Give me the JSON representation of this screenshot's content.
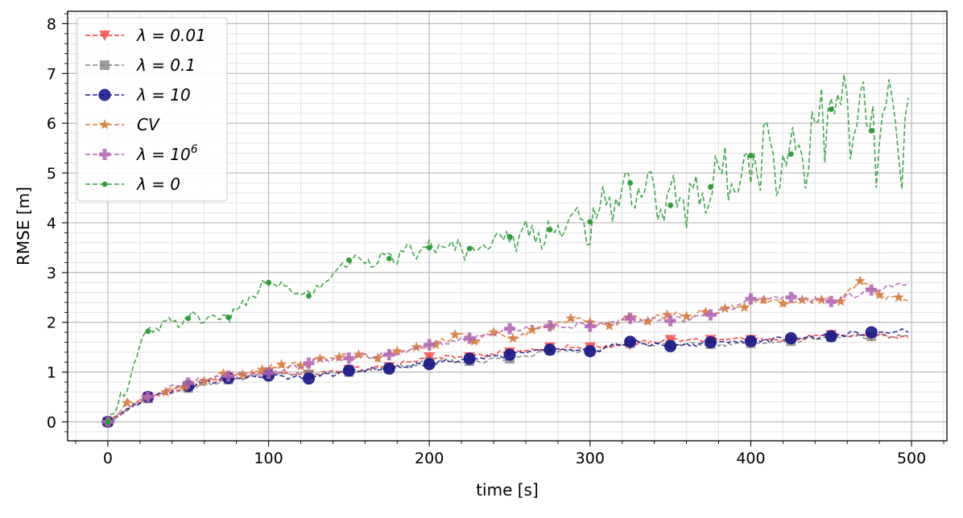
{
  "chart_data": {
    "type": "line",
    "xlabel": "time [s]",
    "ylabel": "RMSE [m]",
    "xlim": [
      -25,
      522
    ],
    "ylim": [
      -0.38,
      8.25
    ],
    "x_ticks": [
      0,
      100,
      200,
      300,
      400,
      500
    ],
    "y_ticks": [
      0,
      1,
      2,
      3,
      4,
      5,
      6,
      7,
      8
    ],
    "x_tick_labels": [
      "0",
      "100",
      "200",
      "300",
      "400",
      "500"
    ],
    "y_tick_labels": [
      "0",
      "1",
      "2",
      "3",
      "4",
      "5",
      "6",
      "7",
      "8"
    ],
    "grid": true,
    "legend_position": "top-left",
    "series": [
      {
        "name": "λ = 0.01",
        "legend_label": "λ = 0.01",
        "color": "#ff3333",
        "marker": "triangle-down",
        "x": [
          0,
          25,
          50,
          75,
          100,
          125,
          150,
          175,
          200,
          225,
          250,
          275,
          300,
          325,
          350,
          375,
          400,
          425,
          450,
          475
        ],
        "y": [
          0.0,
          0.5,
          0.72,
          0.9,
          1.0,
          0.95,
          1.05,
          1.1,
          1.3,
          1.3,
          1.4,
          1.5,
          1.5,
          1.55,
          1.65,
          1.65,
          1.65,
          1.65,
          1.75,
          1.72
        ]
      },
      {
        "name": "λ = 0.1",
        "legend_label": "λ = 0.1",
        "color": "#808080",
        "marker": "square",
        "x": [
          0,
          25,
          50,
          75,
          100,
          125,
          150,
          175,
          200,
          225,
          250,
          275,
          300,
          325,
          350,
          375,
          400,
          425,
          450,
          475
        ],
        "y": [
          0.0,
          0.47,
          0.68,
          0.85,
          0.97,
          0.95,
          1.0,
          1.08,
          1.2,
          1.22,
          1.27,
          1.44,
          1.42,
          1.58,
          1.55,
          1.56,
          1.58,
          1.62,
          1.7,
          1.72
        ]
      },
      {
        "name": "λ = 10",
        "legend_label": "λ = 10",
        "color": "#1a1a8c",
        "marker": "circle",
        "x": [
          0,
          25,
          50,
          75,
          100,
          125,
          150,
          175,
          200,
          225,
          250,
          275,
          300,
          325,
          350,
          375,
          400,
          425,
          450,
          475
        ],
        "y": [
          0.0,
          0.5,
          0.72,
          0.88,
          0.93,
          0.87,
          1.03,
          1.07,
          1.16,
          1.27,
          1.35,
          1.45,
          1.42,
          1.61,
          1.52,
          1.6,
          1.62,
          1.68,
          1.72,
          1.8
        ]
      },
      {
        "name": "CV",
        "legend_label": "CV",
        "color": "#d97a3a",
        "marker": "star",
        "x": [
          0,
          12,
          24,
          36,
          48,
          60,
          72,
          84,
          96,
          108,
          120,
          132,
          144,
          156,
          168,
          180,
          192,
          204,
          216,
          228,
          240,
          252,
          264,
          276,
          288,
          300,
          312,
          324,
          336,
          348,
          360,
          372,
          384,
          396,
          408,
          420,
          432,
          444,
          456,
          468,
          480,
          492
        ],
        "y": [
          0.0,
          0.38,
          0.5,
          0.6,
          0.7,
          0.82,
          0.97,
          0.95,
          1.05,
          1.15,
          1.12,
          1.27,
          1.3,
          1.35,
          1.28,
          1.42,
          1.5,
          1.55,
          1.75,
          1.62,
          1.8,
          1.68,
          1.85,
          1.92,
          2.08,
          2.0,
          1.93,
          2.1,
          2.02,
          2.15,
          2.12,
          2.2,
          2.28,
          2.3,
          2.45,
          2.38,
          2.45,
          2.45,
          2.42,
          2.83,
          2.55,
          2.5
        ]
      },
      {
        "name": "λ = 10^6",
        "legend_label": "λ = 10",
        "legend_superscript": "6",
        "color": "#b064b4",
        "marker": "plus",
        "x": [
          0,
          25,
          50,
          75,
          100,
          125,
          150,
          175,
          200,
          225,
          250,
          275,
          300,
          325,
          350,
          375,
          400,
          425,
          450,
          475
        ],
        "y": [
          0.0,
          0.5,
          0.78,
          0.92,
          0.98,
          1.18,
          1.28,
          1.35,
          1.55,
          1.68,
          1.87,
          1.93,
          1.92,
          2.08,
          2.03,
          2.15,
          2.47,
          2.5,
          2.42,
          2.65
        ]
      },
      {
        "name": "λ = 0",
        "legend_label": "λ = 0",
        "color": "#2e9e3a",
        "marker": "point",
        "x": [
          0,
          25,
          50,
          75,
          100,
          125,
          150,
          175,
          200,
          225,
          250,
          275,
          300,
          325,
          350,
          375,
          400,
          425,
          450,
          475
        ],
        "y": [
          0.0,
          1.82,
          2.08,
          2.1,
          2.8,
          2.53,
          3.25,
          3.28,
          3.5,
          3.48,
          3.72,
          3.86,
          4.02,
          4.8,
          4.35,
          4.72,
          5.35,
          5.38,
          6.28,
          5.85
        ]
      }
    ]
  }
}
